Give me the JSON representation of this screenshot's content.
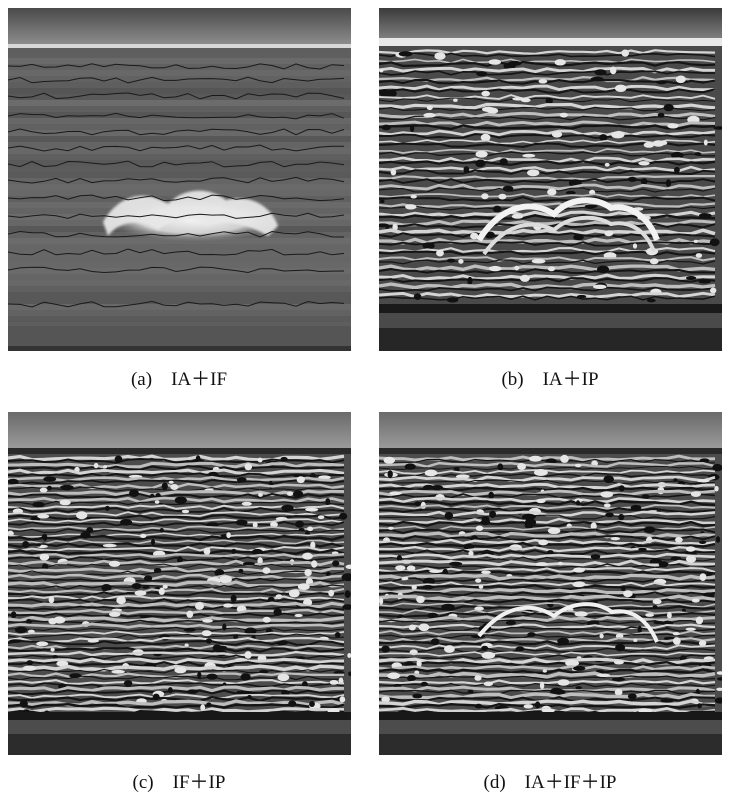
{
  "figure": {
    "panels": [
      {
        "id": "a",
        "caption": "(a)    IA＋IF",
        "style": "grey-contours"
      },
      {
        "id": "b",
        "caption": "(b)    IA＋IP",
        "style": "bright-arch"
      },
      {
        "id": "c",
        "caption": "(c)    IF＋IP",
        "style": "dense-stripes"
      },
      {
        "id": "d",
        "caption": "(d)    IA＋IF＋IP",
        "style": "dense-stripes-arch"
      }
    ]
  }
}
